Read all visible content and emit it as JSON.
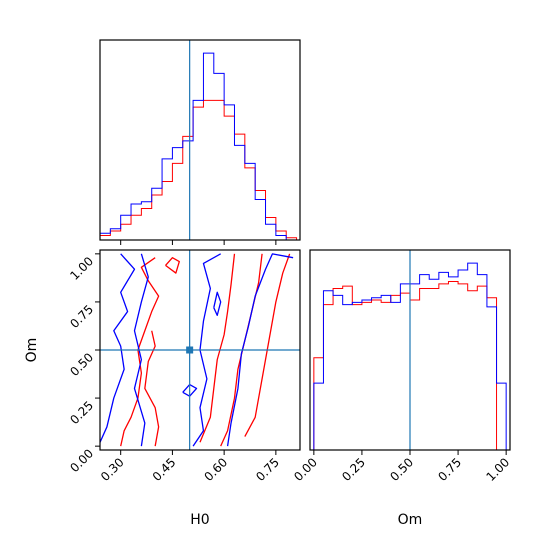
{
  "chart_data": [
    {
      "type": "histogram",
      "panel": "H0 marginal",
      "xlabel": "",
      "ylabel": "",
      "xlim": [
        0.24,
        0.82
      ],
      "truth": 0.5,
      "bin_edges": [
        0.24,
        0.27,
        0.3,
        0.33,
        0.36,
        0.39,
        0.42,
        0.45,
        0.48,
        0.51,
        0.54,
        0.57,
        0.6,
        0.63,
        0.66,
        0.69,
        0.72,
        0.75,
        0.78,
        0.81
      ],
      "series": [
        {
          "color": "#ff0000",
          "values": [
            2,
            4,
            7,
            11,
            14,
            20,
            26,
            34,
            46,
            59,
            62,
            62,
            55,
            47,
            32,
            22,
            10,
            4,
            1
          ]
        },
        {
          "color": "#0000ff",
          "values": [
            3,
            5,
            11,
            16,
            17,
            23,
            36,
            41,
            44,
            62,
            83,
            74,
            60,
            42,
            34,
            18,
            7,
            2,
            0
          ]
        }
      ]
    },
    {
      "type": "contour",
      "panel": "H0 vs Om",
      "xlabel": "H0",
      "ylabel": "Om",
      "xlim": [
        0.24,
        0.82
      ],
      "ylim": [
        -0.02,
        1.02
      ],
      "xticks": [
        "0.30",
        "0.45",
        "0.60",
        "0.75"
      ],
      "yticks": [
        "0.00",
        "0.25",
        "0.50",
        "0.75",
        "1.00"
      ],
      "truth": [
        0.5,
        0.5
      ],
      "series": [
        {
          "color": "#ff0000",
          "contours": [
            [
              [
                0.3,
                0.0
              ],
              [
                0.31,
                0.08
              ],
              [
                0.33,
                0.15
              ],
              [
                0.35,
                0.25
              ],
              [
                0.36,
                0.38
              ],
              [
                0.35,
                0.5
              ],
              [
                0.37,
                0.6
              ],
              [
                0.39,
                0.7
              ],
              [
                0.41,
                0.78
              ],
              [
                0.38,
                0.86
              ],
              [
                0.36,
                0.93
              ],
              [
                0.4,
                0.98
              ]
            ],
            [
              [
                0.4,
                0.0
              ],
              [
                0.41,
                0.1
              ],
              [
                0.4,
                0.2
              ],
              [
                0.37,
                0.3
              ],
              [
                0.38,
                0.44
              ],
              [
                0.4,
                0.52
              ],
              [
                0.39,
                0.6
              ]
            ],
            [
              [
                0.43,
                0.94
              ],
              [
                0.45,
                0.98
              ],
              [
                0.47,
                0.96
              ],
              [
                0.46,
                0.9
              ],
              [
                0.43,
                0.94
              ]
            ],
            [
              [
                0.59,
                0.0
              ],
              [
                0.61,
                0.08
              ],
              [
                0.63,
                0.25
              ],
              [
                0.64,
                0.4
              ],
              [
                0.66,
                0.55
              ],
              [
                0.68,
                0.7
              ],
              [
                0.7,
                0.85
              ],
              [
                0.71,
                1.0
              ]
            ],
            [
              [
                0.53,
                0.02
              ],
              [
                0.56,
                0.15
              ],
              [
                0.57,
                0.3
              ],
              [
                0.58,
                0.45
              ],
              [
                0.6,
                0.58
              ],
              [
                0.61,
                0.7
              ],
              [
                0.62,
                0.84
              ],
              [
                0.63,
                1.0
              ]
            ],
            [
              [
                0.66,
                0.05
              ],
              [
                0.69,
                0.15
              ],
              [
                0.71,
                0.35
              ],
              [
                0.73,
                0.55
              ],
              [
                0.75,
                0.75
              ],
              [
                0.77,
                0.9
              ],
              [
                0.79,
                1.0
              ]
            ]
          ]
        },
        {
          "color": "#0000ff",
          "contours": [
            [
              [
                0.24,
                0.02
              ],
              [
                0.26,
                0.1
              ],
              [
                0.28,
                0.25
              ],
              [
                0.31,
                0.4
              ],
              [
                0.3,
                0.52
              ],
              [
                0.28,
                0.6
              ],
              [
                0.32,
                0.7
              ],
              [
                0.3,
                0.8
              ],
              [
                0.34,
                0.92
              ],
              [
                0.3,
                1.0
              ]
            ],
            [
              [
                0.36,
                0.0
              ],
              [
                0.37,
                0.12
              ],
              [
                0.34,
                0.3
              ],
              [
                0.36,
                0.45
              ],
              [
                0.34,
                0.6
              ],
              [
                0.36,
                0.75
              ],
              [
                0.38,
                0.88
              ],
              [
                0.36,
                1.0
              ]
            ],
            [
              [
                0.51,
                0.0
              ],
              [
                0.54,
                0.08
              ],
              [
                0.53,
                0.2
              ],
              [
                0.55,
                0.35
              ],
              [
                0.53,
                0.5
              ],
              [
                0.54,
                0.65
              ],
              [
                0.56,
                0.82
              ],
              [
                0.54,
                0.95
              ],
              [
                0.59,
                1.0
              ]
            ],
            [
              [
                0.61,
                0.0
              ],
              [
                0.62,
                0.12
              ],
              [
                0.64,
                0.3
              ],
              [
                0.65,
                0.48
              ],
              [
                0.67,
                0.62
              ],
              [
                0.69,
                0.78
              ],
              [
                0.72,
                0.92
              ],
              [
                0.74,
                1.0
              ],
              [
                0.8,
                0.98
              ]
            ],
            [
              [
                0.48,
                0.28
              ],
              [
                0.5,
                0.32
              ],
              [
                0.52,
                0.3
              ],
              [
                0.5,
                0.26
              ],
              [
                0.48,
                0.28
              ]
            ],
            [
              [
                0.57,
                0.72
              ],
              [
                0.58,
                0.8
              ],
              [
                0.59,
                0.75
              ],
              [
                0.58,
                0.68
              ],
              [
                0.57,
                0.72
              ]
            ]
          ]
        }
      ]
    },
    {
      "type": "histogram",
      "panel": "Om marginal",
      "xlabel": "Om",
      "ylabel": "",
      "xlim": [
        -0.02,
        1.02
      ],
      "xticks": [
        "0.00",
        "0.25",
        "0.50",
        "0.75",
        "1.00"
      ],
      "truth": 0.5,
      "bin_edges": [
        0.0,
        0.05,
        0.1,
        0.15,
        0.2,
        0.25,
        0.3,
        0.35,
        0.4,
        0.45,
        0.5,
        0.55,
        0.6,
        0.65,
        0.7,
        0.75,
        0.8,
        0.85,
        0.9,
        0.95,
        1.0
      ],
      "series": [
        {
          "color": "#ff0000",
          "values": [
            40,
            63,
            70,
            71,
            63,
            64,
            65,
            64,
            67,
            68,
            65,
            70,
            70,
            72,
            73,
            72,
            69,
            71,
            66,
            0
          ]
        },
        {
          "color": "#0000ff",
          "values": [
            29,
            69,
            67,
            63,
            64,
            65,
            66,
            67,
            64,
            72,
            72,
            76,
            74,
            77,
            75,
            78,
            81,
            76,
            62,
            29
          ]
        }
      ]
    }
  ]
}
